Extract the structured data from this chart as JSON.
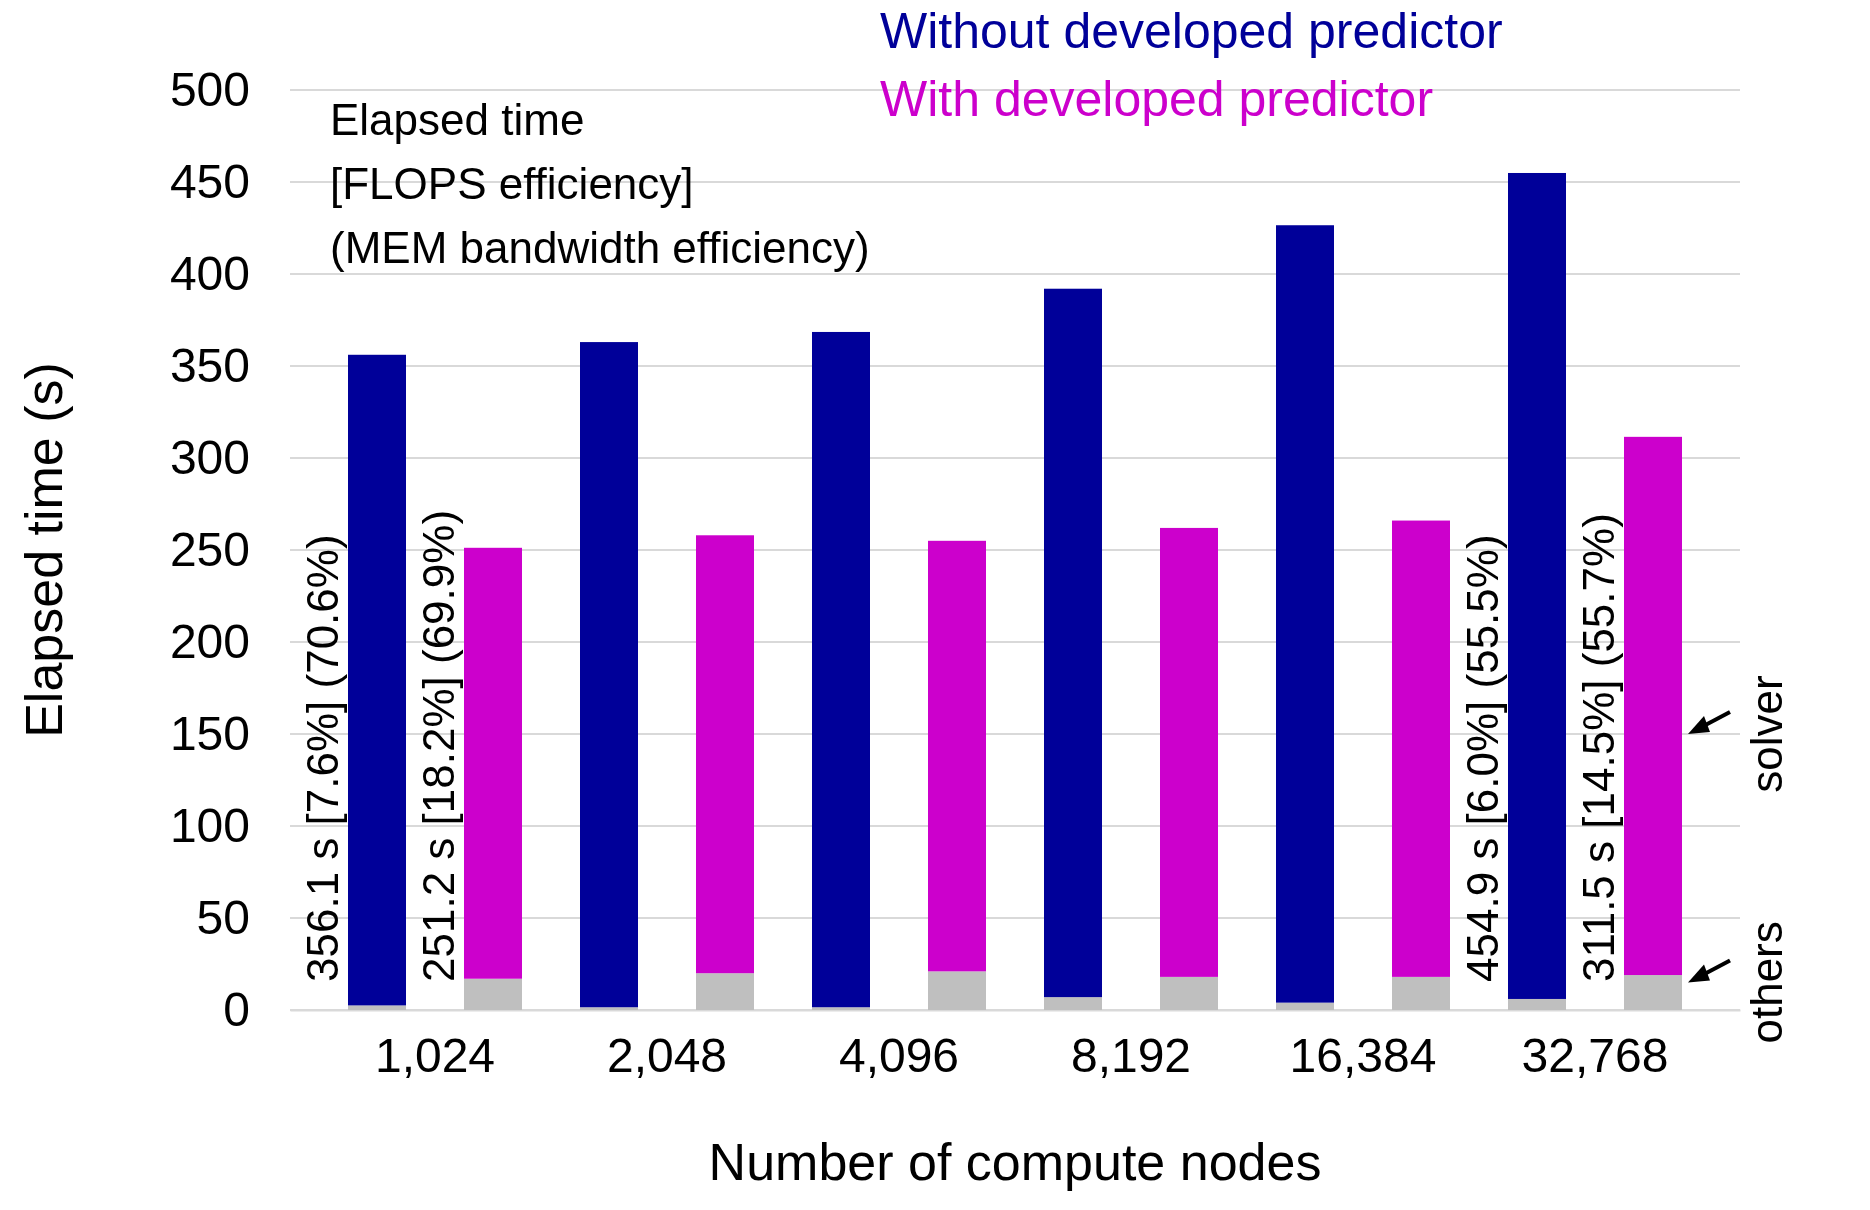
{
  "chart_data": {
    "type": "bar",
    "stacked": true,
    "ylabel": "Elapsed time (s)",
    "xlabel": "Number of compute nodes",
    "categories": [
      "1,024",
      null,
      "2,048",
      null,
      "4,096",
      null,
      "8,192",
      null,
      "16,384",
      null,
      "32,768",
      null
    ],
    "ylim": [
      0,
      500
    ],
    "yticks": [
      0,
      50,
      100,
      150,
      200,
      250,
      300,
      350,
      400,
      450,
      500
    ],
    "grid": "y",
    "legend": "top right",
    "series": [
      {
        "color": "#bfbfbf",
        "values": [
          2.5,
          17,
          1.5,
          20,
          1.5,
          21,
          7,
          18,
          4,
          18,
          6,
          19
        ]
      },
      {
        "name": "Without developed predictor",
        "color": "#000099",
        "values": [
          353.6,
          null,
          361.5,
          null,
          367,
          null,
          385,
          null,
          422.5,
          null,
          448.9,
          null
        ]
      },
      {
        "name": "With developed predictor",
        "color": "#cc00cc",
        "values": [
          null,
          234.2,
          null,
          238,
          null,
          234,
          null,
          244,
          null,
          248,
          null,
          292.5
        ]
      }
    ],
    "totals": [
      "356.1 s [7.6%] (70.6%)",
      "251.2 s [18.2%] (69.9%)",
      null,
      null,
      null,
      null,
      null,
      null,
      null,
      null,
      "454.9 s [6.0%] (55.5%)",
      "311.5 s [14.5%] (55.7%)"
    ],
    "annotations": [
      "Elapsed time",
      "[FLOPS efficiency]",
      "(MEM bandwidth efficiency)",
      "solver",
      "others"
    ]
  }
}
